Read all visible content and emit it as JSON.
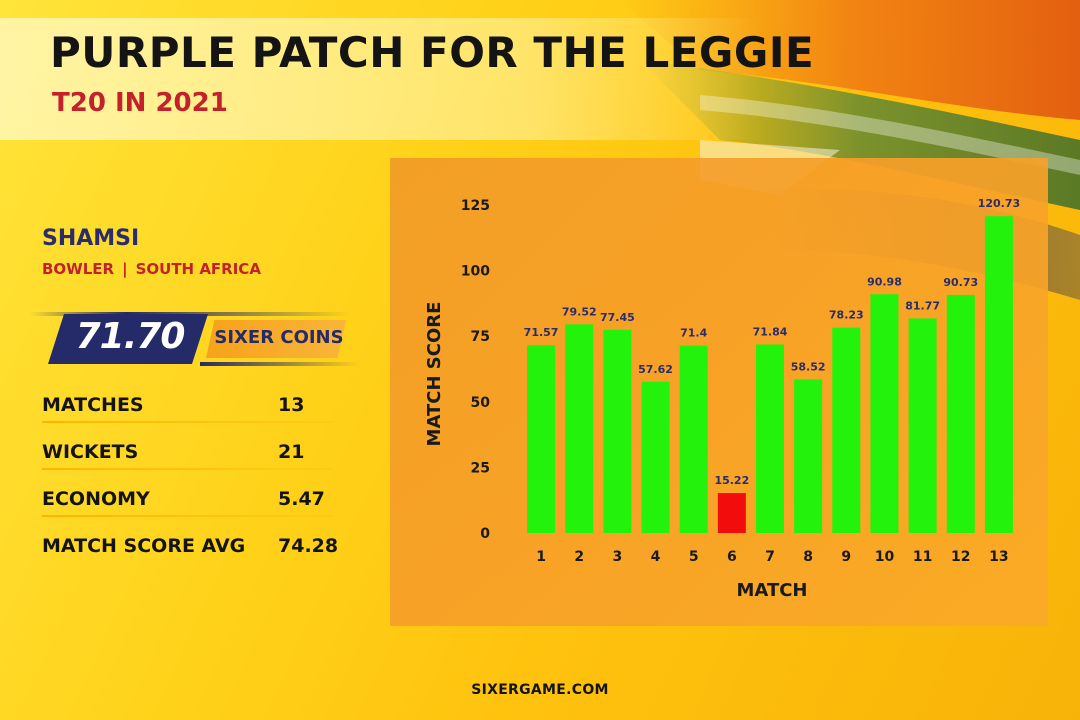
{
  "header": {
    "title": "PURPLE PATCH FOR THE LEGGIE",
    "subtitle": "T20 IN 2021"
  },
  "player": {
    "name": "SHAMSI",
    "role": "BOWLER",
    "separator": "|",
    "country": "SOUTH AFRICA",
    "coins_value": "71.70",
    "coins_label": "SIXER COINS"
  },
  "stats": [
    {
      "label": "MATCHES",
      "value": "13"
    },
    {
      "label": "WICKETS",
      "value": "21"
    },
    {
      "label": "ECONOMY",
      "value": "5.47"
    },
    {
      "label": "MATCH SCORE AVG",
      "value": "74.28"
    }
  ],
  "footer": "SIXERGAME.COM",
  "colors": {
    "bar_good": "#22f20c",
    "bar_bad": "#f20c0c",
    "accent_navy": "#252a68",
    "accent_red": "#c3212b"
  },
  "chart_data": {
    "type": "bar",
    "xlabel": "MATCH",
    "ylabel": "MATCH SCORE",
    "categories": [
      "1",
      "2",
      "3",
      "4",
      "5",
      "6",
      "7",
      "8",
      "9",
      "10",
      "11",
      "12",
      "13"
    ],
    "values": [
      71.57,
      79.52,
      77.45,
      57.62,
      71.4,
      15.22,
      71.84,
      58.52,
      78.23,
      90.98,
      81.77,
      90.73,
      120.73
    ],
    "value_labels": [
      "71.57",
      "79.52",
      "77.45",
      "57.62",
      "71.4",
      "15.22",
      "71.84",
      "58.52",
      "78.23",
      "90.98",
      "81.77",
      "90.73",
      "120.73"
    ],
    "yticks": [
      "0",
      "25",
      "50",
      "75",
      "100",
      "125"
    ],
    "ylim": [
      0,
      125
    ],
    "grid": false,
    "legend": "none"
  }
}
